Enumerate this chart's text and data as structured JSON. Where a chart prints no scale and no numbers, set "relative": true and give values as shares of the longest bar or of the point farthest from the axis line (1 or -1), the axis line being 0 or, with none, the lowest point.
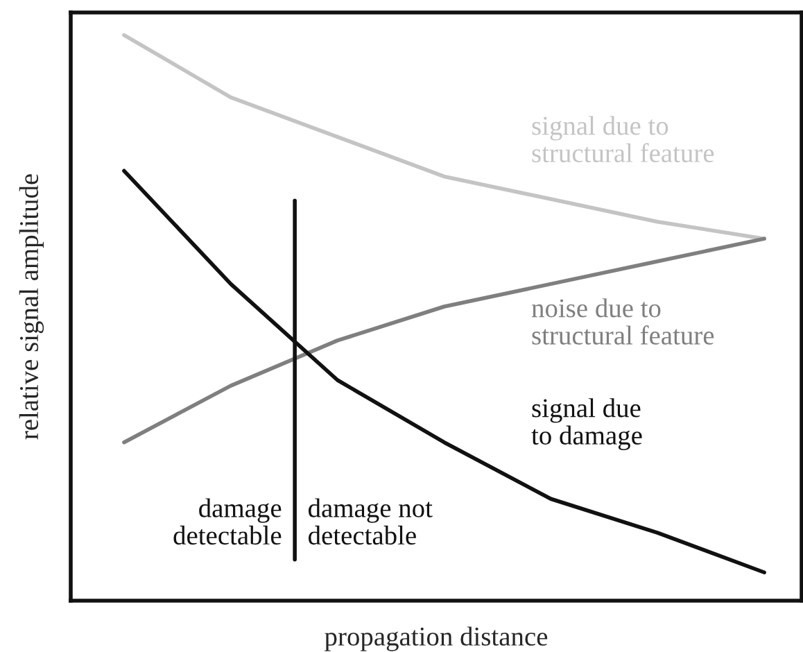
{
  "chart_data": {
    "type": "line",
    "relative": true,
    "xlabel": "propagation distance",
    "ylabel": "relative signal amplitude",
    "categories": [
      null,
      null,
      null,
      null,
      null,
      null,
      null
    ],
    "grid": false,
    "legend": false,
    "marker": "none",
    "line_style": "solid",
    "series": [
      {
        "name": "signal due to\nstructural feature",
        "color": "#c4c4c4",
        "values": [
          1,
          0.89,
          0.82,
          0.75,
          0.71,
          0.67,
          0.64
        ]
      },
      {
        "name": "noise due to\nstructural feature",
        "color": "#7f7f7f",
        "values": [
          0.28,
          0.38,
          0.46,
          0.52,
          0.56,
          0.6,
          0.64
        ]
      },
      {
        "name": "signal due\nto damage",
        "color": "#111111",
        "values": [
          0.76,
          0.56,
          0.39,
          0.28,
          0.18,
          0.12,
          0.05
        ]
      }
    ],
    "annotations": [
      "damage\ndetectable",
      "damage not\ndetectable"
    ]
  }
}
